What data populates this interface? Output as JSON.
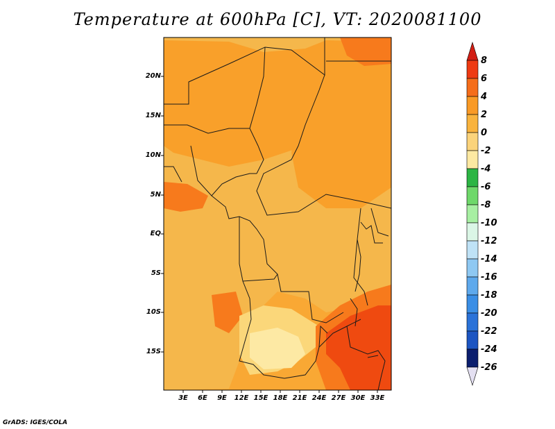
{
  "title": "Temperature at 600hPa [C], VT: 2020081100",
  "footer": "GrADS: IGES/COLA",
  "map": {
    "lat_labels": [
      "20N",
      "15N",
      "10N",
      "5N",
      "EQ",
      "5S",
      "10S",
      "15S"
    ],
    "lon_labels": [
      "3E",
      "6E",
      "9E",
      "12E",
      "15E",
      "18E",
      "21E",
      "24E",
      "27E",
      "30E",
      "33E"
    ],
    "palette": {
      "ocean": "#f9a834",
      "land_warm": "#f5b74b",
      "land_mid": "#f9a02a",
      "hot": "#f77a1c",
      "very_hot": "#ef4a10",
      "pale": "#fbd77a",
      "palest": "#fde9a4",
      "border": "#1a1a1a"
    }
  },
  "colorbar": {
    "labels": [
      "8",
      "6",
      "4",
      "2",
      "0",
      "-2",
      "-4",
      "-6",
      "-8",
      "-10",
      "-12",
      "-14",
      "-16",
      "-18",
      "-20",
      "-22",
      "-24",
      "-26"
    ],
    "top_arrow_color": "#d21e14",
    "bottom_arrow_color": "#e4e0f2",
    "colors": [
      "#ee3a12",
      "#f56d1a",
      "#f99a26",
      "#f9b33d",
      "#fbd37a",
      "#fde9a2",
      "#2cb544",
      "#6ed86a",
      "#a7efa2",
      "#dbf6e6",
      "#bfe2f6",
      "#8ec8f2",
      "#5ea9ec",
      "#3a8ee5",
      "#2a72d8",
      "#1c55c2",
      "#0b1e6e"
    ]
  }
}
